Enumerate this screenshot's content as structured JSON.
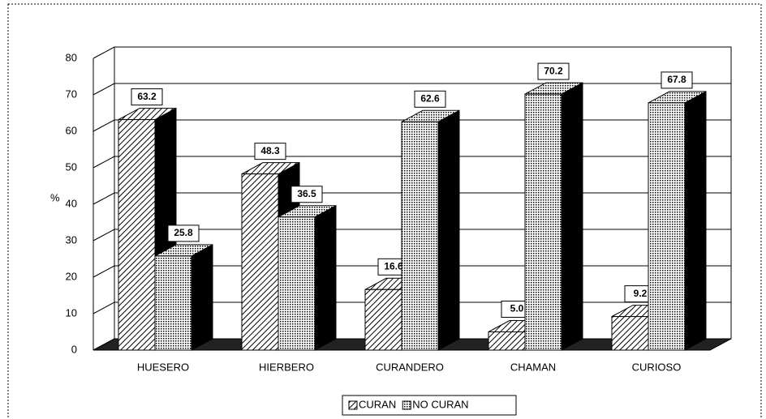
{
  "chart_data": {
    "type": "bar3d",
    "ylabel": "%",
    "categories": [
      "HUESERO",
      "HIERBERO",
      "CURANDERO",
      "CHAMAN",
      "CURIOSO"
    ],
    "series": [
      {
        "name": "CURAN",
        "color": "#000000",
        "values": [
          63.2,
          48.3,
          16.6,
          5,
          9.2
        ],
        "value_labels": [
          "63.2",
          "48.3",
          "16.6",
          "5.0",
          "9.2"
        ]
      },
      {
        "name": "NO CURAN",
        "color": "#000000",
        "values": [
          25.8,
          36.5,
          62.6,
          70.2,
          67.8
        ],
        "value_labels": [
          "25.8",
          "36.5",
          "62.6",
          "70.2",
          "67.8"
        ]
      }
    ],
    "ylim": [
      0,
      80
    ],
    "yticks": [
      0,
      10,
      20,
      30,
      40,
      50,
      60,
      70,
      80
    ],
    "grid": true,
    "legend": "bottom"
  }
}
